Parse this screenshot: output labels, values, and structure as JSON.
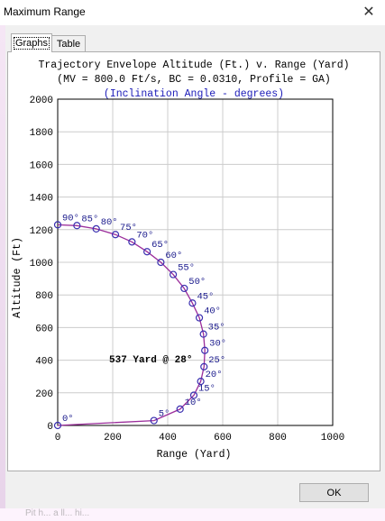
{
  "window": {
    "title": "Maximum Range",
    "close_glyph": "✕"
  },
  "tabs": [
    {
      "label": "Graphs",
      "active": true
    },
    {
      "label": "Table",
      "active": false
    }
  ],
  "buttons": {
    "ok_label": "OK"
  },
  "footer_fragment": "Pit h... a ll... hi... ",
  "colors": {
    "curve": "#9b2d9b",
    "points": "#3a2fb0",
    "labels": "#1a1a8c",
    "subtitle": "#1a1ab8",
    "grid": "#cccccc"
  },
  "chart_data": {
    "type": "line",
    "title": "Trajectory Envelope Altitude (Ft.) v. Range (Yard)",
    "subtitle": "(MV = 800.0 Ft/s, BC = 0.0310, Profile = GA)",
    "subtitle2": "(Inclination Angle - degrees)",
    "xlabel": "Range (Yard)",
    "ylabel": "Altitude (Ft)",
    "xlim": [
      0,
      1000
    ],
    "ylim": [
      0,
      2000
    ],
    "xticks": [
      "0",
      "200",
      "400",
      "600",
      "800",
      "1000"
    ],
    "yticks": [
      "0",
      "200",
      "400",
      "600",
      "800",
      "1000",
      "1200",
      "1400",
      "1600",
      "1800",
      "2000"
    ],
    "grid": true,
    "annotation": "537 Yard @ 28°",
    "points": [
      {
        "angle": "0°",
        "x": 0,
        "y": 0
      },
      {
        "angle": "5°",
        "x": 350,
        "y": 30
      },
      {
        "angle": "10°",
        "x": 445,
        "y": 100
      },
      {
        "angle": "15°",
        "x": 495,
        "y": 185
      },
      {
        "angle": "20°",
        "x": 520,
        "y": 270
      },
      {
        "angle": "25°",
        "x": 532,
        "y": 360
      },
      {
        "angle": "30°",
        "x": 535,
        "y": 460
      },
      {
        "angle": "35°",
        "x": 530,
        "y": 560
      },
      {
        "angle": "40°",
        "x": 515,
        "y": 660
      },
      {
        "angle": "45°",
        "x": 490,
        "y": 750
      },
      {
        "angle": "50°",
        "x": 460,
        "y": 840
      },
      {
        "angle": "55°",
        "x": 420,
        "y": 925
      },
      {
        "angle": "60°",
        "x": 375,
        "y": 1000
      },
      {
        "angle": "65°",
        "x": 325,
        "y": 1065
      },
      {
        "angle": "70°",
        "x": 270,
        "y": 1125
      },
      {
        "angle": "75°",
        "x": 210,
        "y": 1170
      },
      {
        "angle": "80°",
        "x": 140,
        "y": 1205
      },
      {
        "angle": "85°",
        "x": 70,
        "y": 1225
      },
      {
        "angle": "90°",
        "x": 0,
        "y": 1230
      }
    ]
  }
}
